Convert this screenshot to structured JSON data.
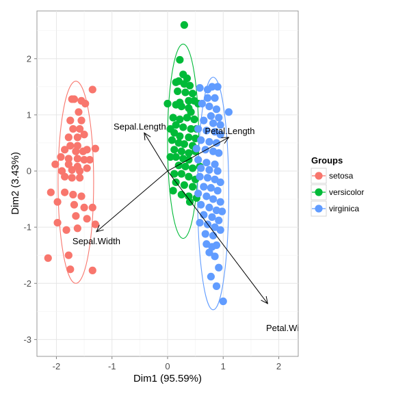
{
  "chart_data": {
    "type": "scatter",
    "title": "",
    "xlabel": "Dim1 (95.59%)",
    "ylabel": "Dim2 (3.43%)",
    "xlim": [
      -2.35,
      2.35
    ],
    "ylim": [
      -3.3,
      2.85
    ],
    "xticks": [
      -2,
      -1,
      0,
      1,
      2
    ],
    "yticks": [
      -3,
      -2,
      -1,
      0,
      1,
      2
    ],
    "grid": true,
    "legend": {
      "title": "Groups",
      "placement": "right",
      "entries": [
        "setosa",
        "versicolor",
        "virginica"
      ]
    },
    "series": [
      {
        "name": "setosa",
        "color": "#F8766D",
        "ellipse": {
          "cx": -1.65,
          "cy": -0.2,
          "rx": 0.32,
          "ry": 1.8
        },
        "points": [
          [
            -1.72,
            1.28
          ],
          [
            -1.68,
            1.28
          ],
          [
            -1.55,
            1.25
          ],
          [
            -1.48,
            1.2
          ],
          [
            -1.35,
            1.45
          ],
          [
            -1.6,
            1.05
          ],
          [
            -1.75,
            0.9
          ],
          [
            -1.55,
            0.9
          ],
          [
            -1.7,
            0.75
          ],
          [
            -1.58,
            0.75
          ],
          [
            -1.78,
            0.6
          ],
          [
            -1.62,
            0.6
          ],
          [
            -1.5,
            0.65
          ],
          [
            -1.75,
            0.45
          ],
          [
            -1.62,
            0.45
          ],
          [
            -1.85,
            0.38
          ],
          [
            -1.65,
            0.35
          ],
          [
            -1.52,
            0.35
          ],
          [
            -1.45,
            0.38
          ],
          [
            -1.3,
            0.4
          ],
          [
            -1.92,
            0.25
          ],
          [
            -1.78,
            0.22
          ],
          [
            -1.62,
            0.22
          ],
          [
            -1.5,
            0.2
          ],
          [
            -1.4,
            0.2
          ],
          [
            -1.78,
            0.12
          ],
          [
            -1.62,
            0.08
          ],
          [
            -2.02,
            0.12
          ],
          [
            -1.9,
            0.0
          ],
          [
            -1.72,
            0.02
          ],
          [
            -1.58,
            0.0
          ],
          [
            -1.45,
            0.05
          ],
          [
            -1.85,
            -0.1
          ],
          [
            -1.72,
            -0.12
          ],
          [
            -1.58,
            -0.12
          ],
          [
            -2.1,
            -0.38
          ],
          [
            -1.85,
            -0.38
          ],
          [
            -1.7,
            -0.42
          ],
          [
            -1.55,
            -0.45
          ],
          [
            -1.98,
            -0.55
          ],
          [
            -1.68,
            -0.6
          ],
          [
            -1.5,
            -0.65
          ],
          [
            -1.35,
            -0.65
          ],
          [
            -1.65,
            -0.8
          ],
          [
            -1.45,
            -0.85
          ],
          [
            -1.98,
            -0.92
          ],
          [
            -1.3,
            -0.95
          ],
          [
            -1.82,
            -1.05
          ],
          [
            -1.62,
            -1.02
          ],
          [
            -1.78,
            -1.5
          ],
          [
            -2.15,
            -1.55
          ],
          [
            -1.75,
            -1.75
          ],
          [
            -1.35,
            -1.77
          ]
        ]
      },
      {
        "name": "versicolor",
        "color": "#00BA38",
        "ellipse": {
          "cx": 0.28,
          "cy": 0.53,
          "rx": 0.28,
          "ry": 1.73
        },
        "points": [
          [
            0.3,
            2.6
          ],
          [
            0.22,
            1.98
          ],
          [
            0.28,
            1.72
          ],
          [
            0.35,
            1.65
          ],
          [
            0.2,
            1.6
          ],
          [
            0.15,
            1.58
          ],
          [
            0.3,
            1.55
          ],
          [
            0.4,
            1.52
          ],
          [
            0.18,
            1.42
          ],
          [
            0.32,
            1.4
          ],
          [
            0.45,
            1.38
          ],
          [
            0.38,
            1.25
          ],
          [
            0.48,
            1.25
          ],
          [
            0.22,
            1.22
          ],
          [
            0.15,
            1.18
          ],
          [
            0.25,
            1.15
          ],
          [
            0.38,
            1.12
          ],
          [
            0.42,
            1.05
          ],
          [
            0.0,
            1.2
          ],
          [
            0.55,
            1.2
          ],
          [
            0.1,
            0.95
          ],
          [
            0.22,
            0.92
          ],
          [
            0.35,
            0.95
          ],
          [
            0.48,
            0.92
          ],
          [
            0.15,
            0.82
          ],
          [
            0.28,
            0.78
          ],
          [
            0.42,
            0.75
          ],
          [
            0.52,
            0.75
          ],
          [
            0.05,
            0.75
          ],
          [
            0.12,
            0.68
          ],
          [
            0.22,
            0.62
          ],
          [
            0.38,
            0.6
          ],
          [
            0.5,
            0.58
          ],
          [
            0.08,
            0.55
          ],
          [
            0.2,
            0.5
          ],
          [
            0.3,
            0.48
          ],
          [
            0.45,
            0.45
          ],
          [
            0.12,
            0.38
          ],
          [
            0.25,
            0.35
          ],
          [
            0.38,
            0.32
          ],
          [
            0.5,
            0.35
          ],
          [
            0.15,
            0.25
          ],
          [
            0.28,
            0.22
          ],
          [
            0.05,
            0.25
          ],
          [
            0.38,
            0.2
          ],
          [
            0.2,
            0.1
          ],
          [
            0.32,
            0.08
          ],
          [
            0.45,
            0.05
          ],
          [
            0.58,
            0.08
          ],
          [
            0.12,
            -0.05
          ],
          [
            0.25,
            -0.05
          ],
          [
            0.38,
            -0.1
          ],
          [
            0.5,
            -0.15
          ],
          [
            0.15,
            -0.2
          ],
          [
            0.3,
            -0.25
          ],
          [
            0.45,
            -0.28
          ],
          [
            0.1,
            -0.35
          ],
          [
            0.25,
            -0.42
          ],
          [
            0.38,
            -0.45
          ],
          [
            0.52,
            -0.48
          ],
          [
            0.4,
            -0.55
          ]
        ]
      },
      {
        "name": "virginica",
        "color": "#619CFF",
        "ellipse": {
          "cx": 0.82,
          "cy": -0.4,
          "rx": 0.28,
          "ry": 2.07
        },
        "points": [
          [
            0.58,
            1.48
          ],
          [
            0.72,
            1.45
          ],
          [
            0.8,
            1.5
          ],
          [
            0.9,
            1.5
          ],
          [
            0.72,
            1.3
          ],
          [
            0.85,
            1.3
          ],
          [
            0.62,
            1.2
          ],
          [
            0.75,
            1.15
          ],
          [
            0.88,
            1.1
          ],
          [
            0.78,
            0.98
          ],
          [
            0.92,
            0.95
          ],
          [
            0.65,
            0.9
          ],
          [
            0.82,
            0.85
          ],
          [
            0.95,
            0.82
          ],
          [
            1.1,
            1.05
          ],
          [
            0.55,
            0.75
          ],
          [
            0.7,
            0.72
          ],
          [
            0.85,
            0.7
          ],
          [
            0.95,
            0.65
          ],
          [
            0.6,
            0.55
          ],
          [
            0.75,
            0.52
          ],
          [
            0.88,
            0.5
          ],
          [
            0.52,
            0.4
          ],
          [
            0.68,
            0.38
          ],
          [
            0.82,
            0.35
          ],
          [
            0.92,
            0.32
          ],
          [
            0.55,
            0.2
          ],
          [
            0.7,
            0.15
          ],
          [
            0.85,
            0.12
          ],
          [
            0.6,
            0.05
          ],
          [
            0.75,
            0.02
          ],
          [
            0.9,
            0.0
          ],
          [
            0.58,
            -0.1
          ],
          [
            0.72,
            -0.12
          ],
          [
            0.85,
            -0.15
          ],
          [
            0.95,
            -0.2
          ],
          [
            0.65,
            -0.28
          ],
          [
            0.78,
            -0.3
          ],
          [
            0.9,
            -0.35
          ],
          [
            0.55,
            -0.4
          ],
          [
            0.7,
            -0.45
          ],
          [
            0.82,
            -0.5
          ],
          [
            0.95,
            -0.55
          ],
          [
            0.6,
            -0.6
          ],
          [
            0.75,
            -0.65
          ],
          [
            0.88,
            -0.7
          ],
          [
            0.98,
            -0.72
          ],
          [
            0.65,
            -0.78
          ],
          [
            0.8,
            -0.82
          ],
          [
            0.92,
            -0.88
          ],
          [
            0.58,
            -0.92
          ],
          [
            0.72,
            -0.95
          ],
          [
            0.85,
            -1.0
          ],
          [
            0.95,
            -1.05
          ],
          [
            0.68,
            -1.12
          ],
          [
            0.82,
            -1.15
          ],
          [
            0.7,
            -1.3
          ],
          [
            0.8,
            -1.35
          ],
          [
            0.88,
            -1.32
          ],
          [
            0.75,
            -1.45
          ],
          [
            0.85,
            -1.52
          ],
          [
            0.92,
            -1.72
          ],
          [
            0.78,
            -1.88
          ],
          [
            0.88,
            -2.05
          ],
          [
            1.0,
            -2.32
          ]
        ]
      }
    ],
    "variables": [
      {
        "name": "Sepal.Length",
        "x": -0.42,
        "y": 0.68,
        "label_x": -0.5,
        "label_y": 0.74,
        "anchor": "middle"
      },
      {
        "name": "Sepal.Width",
        "x": -1.28,
        "y": -1.08,
        "label_x": -1.28,
        "label_y": -1.3,
        "anchor": "middle"
      },
      {
        "name": "Petal.Length",
        "x": 1.1,
        "y": 0.6,
        "label_x": 1.12,
        "label_y": 0.66,
        "anchor": "middle"
      },
      {
        "name": "Petal.Width",
        "x": 1.8,
        "y": -2.36,
        "label_x": 2.18,
        "label_y": -2.85,
        "anchor": "middle"
      }
    ]
  }
}
